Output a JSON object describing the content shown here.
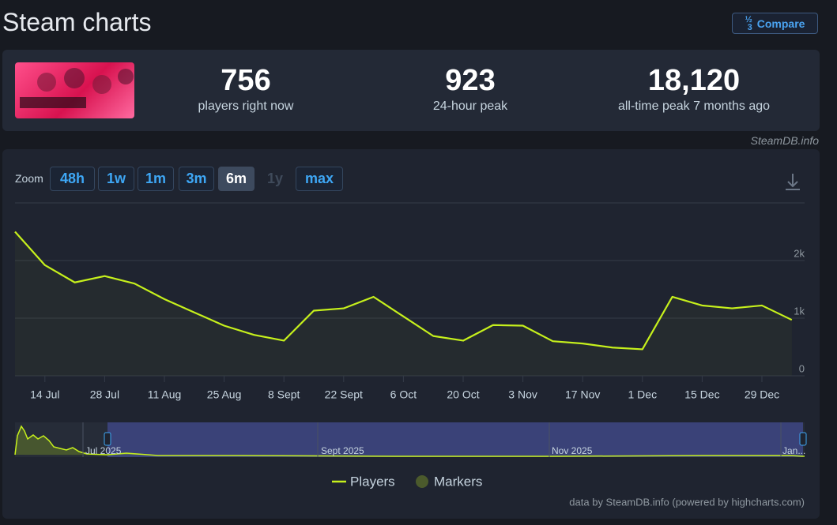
{
  "header": {
    "title": "Steam charts",
    "compare": "Compare"
  },
  "stats": [
    {
      "value": "756",
      "label": "players right now"
    },
    {
      "value": "923",
      "label": "24-hour peak"
    },
    {
      "value": "18,120",
      "label": "all-time peak 7 months ago"
    }
  ],
  "source": "SteamDB.info",
  "zoom": {
    "label": "Zoom",
    "buttons": [
      "48h",
      "1w",
      "1m",
      "3m",
      "6m",
      "1y",
      "max"
    ],
    "active": 4,
    "disabled": [
      5
    ]
  },
  "chart_data": {
    "type": "line",
    "categories": [
      null,
      "14 Jul",
      null,
      "28 Jul",
      null,
      "11 Aug",
      null,
      "25 Aug",
      null,
      "8 Sept",
      null,
      "22 Sept",
      null,
      "6 Oct",
      null,
      "20 Oct",
      null,
      "3 Nov",
      null,
      "17 Nov",
      null,
      "1 Dec",
      null,
      "15 Dec",
      null,
      "29 Dec",
      null
    ],
    "series": [
      {
        "name": "Players",
        "color": "#c6f01c",
        "values": [
          2500,
          1920,
          1620,
          1730,
          1600,
          1330,
          1100,
          870,
          710,
          610,
          1130,
          1170,
          1370,
          1030,
          690,
          610,
          880,
          870,
          600,
          560,
          490,
          460,
          1370,
          1220,
          1170,
          1220,
          970
        ]
      }
    ],
    "markers": {
      "name": "Markers",
      "color": "#4b5a2c"
    },
    "ylim": [
      0,
      3000
    ],
    "yticks": [
      0,
      {
        "value": 1000,
        "label": "1k"
      },
      {
        "value": 2000,
        "label": "2k"
      }
    ],
    "grid": true,
    "navigator_labels": [
      "Jul 2025",
      "Sept 2025",
      "Nov 2025",
      "Jan..."
    ],
    "credit": "data by SteamDB.info (powered by highcharts.com)"
  }
}
